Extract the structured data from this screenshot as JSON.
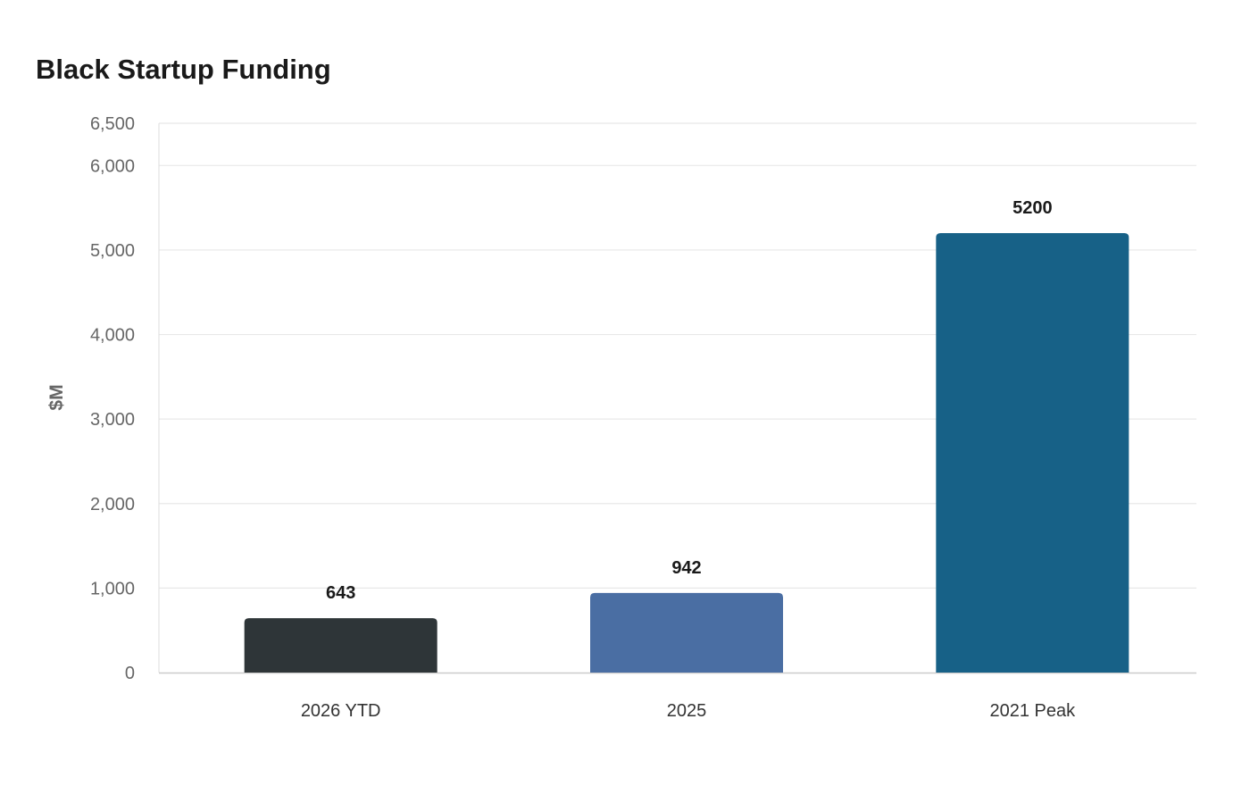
{
  "chart_data": {
    "type": "bar",
    "title": "Black Startup Funding",
    "xlabel": "",
    "ylabel": "$M",
    "categories": [
      "2026 YTD",
      "2025",
      "2021 Peak"
    ],
    "values": [
      643,
      942,
      5200
    ],
    "value_labels": [
      "643",
      "942",
      "5200"
    ],
    "ylim": [
      0,
      6500
    ],
    "yticks": [
      0,
      1000,
      2000,
      3000,
      4000,
      5000,
      6000,
      6500
    ],
    "ytick_labels": [
      "0",
      "1,000",
      "2,000",
      "3,000",
      "4,000",
      "5,000",
      "6,000",
      "6,500"
    ],
    "colors": [
      "#2e3538",
      "#4a6ea3",
      "#176187"
    ],
    "grid": true,
    "legend": "none"
  }
}
